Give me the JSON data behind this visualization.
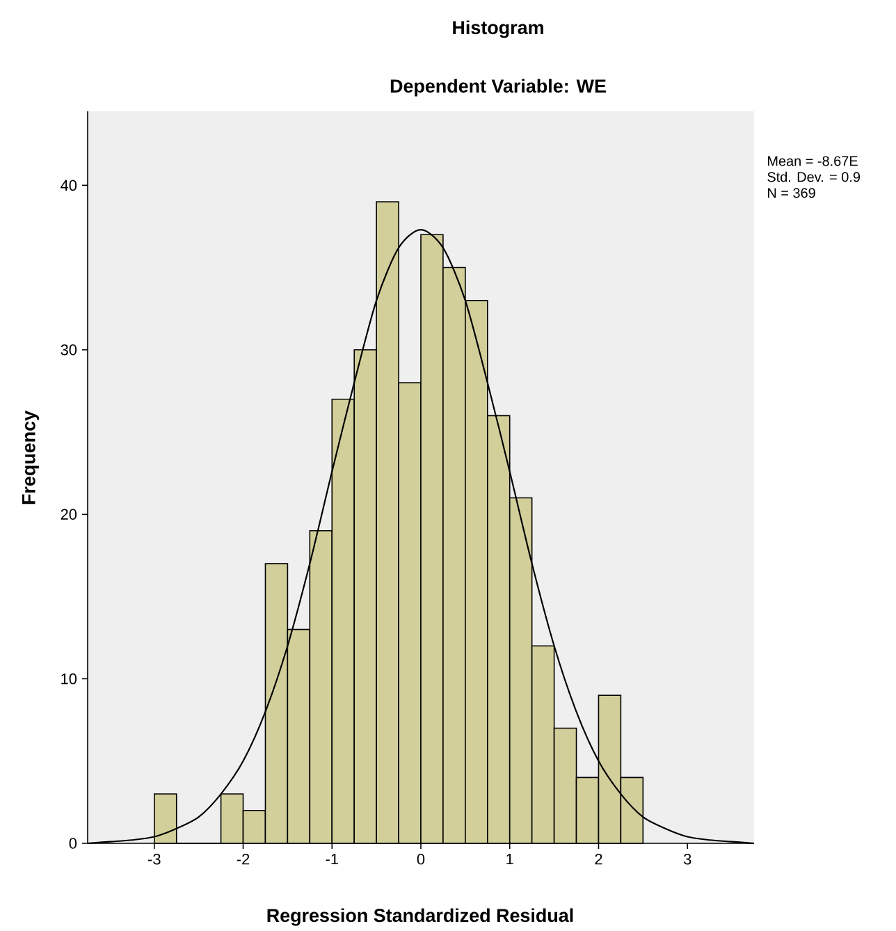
{
  "chart_data": {
    "type": "histogram",
    "title": "Histogram",
    "subtitle": "Dependent Variable: WE",
    "xlabel": "Regression Standardized Residual",
    "ylabel": "Frequency",
    "bins": [
      -3,
      -2.75,
      -2.5,
      -2.25,
      -2,
      -1.75,
      -1.5,
      -1.25,
      -1,
      -0.75,
      -0.5,
      -0.25,
      0,
      0.25,
      0.5,
      0.75,
      1,
      1.25,
      1.5,
      1.75,
      2,
      2.25,
      2.5
    ],
    "values": [
      3,
      0,
      0,
      3,
      2,
      17,
      13,
      19,
      27,
      30,
      39,
      28,
      37,
      35,
      33,
      26,
      21,
      12,
      7,
      4,
      9,
      4
    ],
    "color": "#d3cf9b",
    "series": [
      {
        "type": "line",
        "color": "#000000",
        "x": [
          -3.75,
          -3.5,
          -3.25,
          -3,
          -2.75,
          -2.5,
          -2.25,
          -2,
          -1.75,
          -1.5,
          -1.25,
          -1,
          -0.75,
          -0.5,
          -0.25,
          0,
          0.25,
          0.5,
          0.75,
          1,
          1.25,
          1.5,
          1.75,
          2,
          2.25,
          2.5,
          2.75,
          3,
          3.25,
          3.5,
          3.75
        ],
        "values": [
          0,
          0.1,
          0.2,
          0.4,
          0.9,
          1.6,
          3,
          5,
          8,
          12,
          17,
          22.6,
          28,
          33,
          36.2,
          37.3,
          36.2,
          33,
          28,
          22.6,
          17,
          12,
          8,
          5,
          3,
          1.6,
          0.9,
          0.4,
          0.2,
          0.1,
          0
        ]
      }
    ],
    "xlim": [
      -3.75,
      3.75
    ],
    "ylim": [
      0,
      44.5
    ],
    "xticks": [
      -3,
      -2,
      -1,
      0,
      1,
      2,
      3
    ],
    "yticks": [
      0,
      10,
      20,
      30,
      40
    ],
    "grid": false,
    "annotations": [
      "Mean = -8.67E",
      "Std. Dev. = 0.9",
      "N = 369"
    ]
  }
}
